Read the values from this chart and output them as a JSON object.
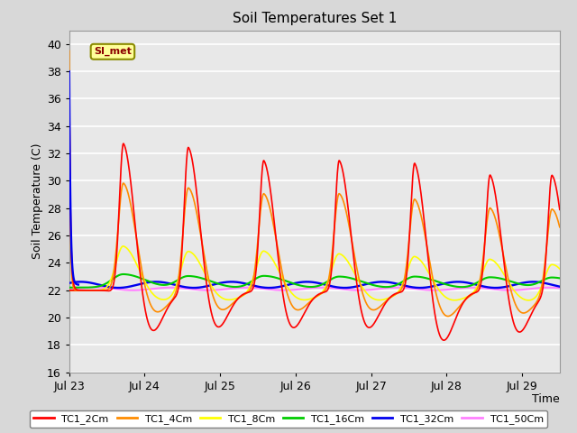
{
  "title": "Soil Temperatures Set 1",
  "xlabel": "Time",
  "ylabel": "Soil Temperature (C)",
  "ylim": [
    16,
    41
  ],
  "yticks": [
    16,
    18,
    20,
    22,
    24,
    26,
    28,
    30,
    32,
    34,
    36,
    38,
    40
  ],
  "xtick_labels": [
    "Jul 23",
    "Jul 24",
    "Jul 25",
    "Jul 26",
    "Jul 27",
    "Jul 28",
    "Jul 29"
  ],
  "annotation_text": "SI_met",
  "colors": {
    "TC1_2Cm": "#FF0000",
    "TC1_4Cm": "#FF8C00",
    "TC1_8Cm": "#FFFF00",
    "TC1_16Cm": "#00CC00",
    "TC1_32Cm": "#0000EE",
    "TC1_50Cm": "#FF80FF"
  },
  "bg_color": "#D8D8D8",
  "plot_bg_color": "#E8E8E8",
  "grid_color": "#FFFFFF",
  "linewidth": 1.2
}
